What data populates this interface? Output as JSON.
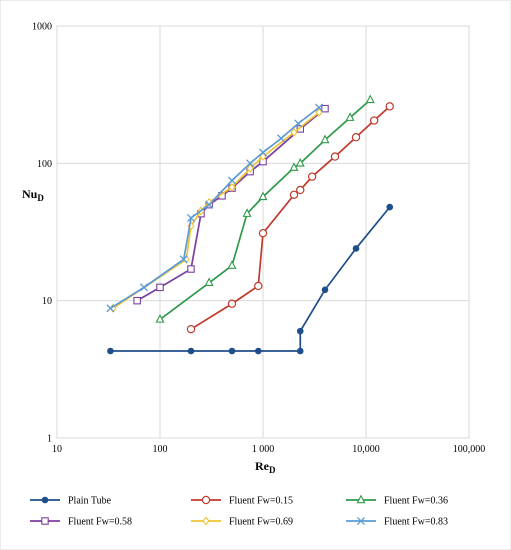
{
  "chart_data": {
    "type": "line",
    "title": "",
    "xlabel": "Re",
    "xlabel_sub": "D",
    "ylabel": "Nu",
    "ylabel_sub": "D",
    "x_scale": "log",
    "y_scale": "log",
    "xlim": [
      10,
      100000
    ],
    "ylim": [
      1,
      1000
    ],
    "grid": true,
    "legend_position": "bottom",
    "x_tick_values": [
      10,
      100,
      1000,
      10000,
      100000
    ],
    "x_tick_labels": [
      "10",
      "100",
      "1 000",
      "10,000",
      "100,000"
    ],
    "y_tick_values": [
      1,
      10,
      100,
      1000
    ],
    "y_tick_labels": [
      "1",
      "10",
      "100",
      "1000"
    ],
    "series": [
      {
        "name": "Plain Tube",
        "color": "#1f4e8c",
        "marker": "filled-circle",
        "x": [
          33,
          200,
          500,
          900,
          2300,
          2300,
          4000,
          8000,
          17000
        ],
        "y": [
          4.3,
          4.3,
          4.3,
          4.3,
          4.3,
          6,
          12,
          24,
          48
        ]
      },
      {
        "name": "Fluent Fw=0.15",
        "color": "#c0392b",
        "marker": "open-circle",
        "x": [
          200,
          500,
          900,
          1000,
          2000,
          2300,
          3000,
          5000,
          8000,
          12000,
          17000
        ],
        "y": [
          6.2,
          9.5,
          12.8,
          31,
          59,
          64,
          80,
          112,
          155,
          205,
          260
        ]
      },
      {
        "name": "Fluent Fw=0.36",
        "color": "#2e9a4a",
        "marker": "open-triangle",
        "x": [
          100,
          300,
          500,
          700,
          1000,
          2000,
          2300,
          4000,
          7000,
          11000
        ],
        "y": [
          7.3,
          13.5,
          18,
          43,
          57,
          93,
          100,
          148,
          215,
          290
        ]
      },
      {
        "name": "Fluent Fw=0.58",
        "color": "#7b3fa0",
        "marker": "open-square",
        "x": [
          60,
          100,
          200,
          250,
          300,
          400,
          500,
          750,
          1000,
          2300,
          4000
        ],
        "y": [
          10,
          12.5,
          17,
          43,
          50,
          58,
          66,
          87,
          103,
          178,
          250
        ]
      },
      {
        "name": "Fluent Fw=0.69",
        "color": "#f1c232",
        "marker": "diamond",
        "x": [
          35,
          180,
          200,
          250,
          300,
          500,
          750,
          1000,
          2000,
          3500
        ],
        "y": [
          8.8,
          20,
          35,
          45,
          52,
          67,
          92,
          112,
          168,
          235
        ]
      },
      {
        "name": "Fluent Fw=0.83",
        "color": "#5b9bd5",
        "marker": "cross",
        "x": [
          33,
          70,
          170,
          200,
          300,
          500,
          750,
          1000,
          1500,
          2200,
          3500
        ],
        "y": [
          8.8,
          12.5,
          20,
          40,
          50,
          75,
          100,
          120,
          152,
          195,
          255
        ]
      }
    ]
  }
}
